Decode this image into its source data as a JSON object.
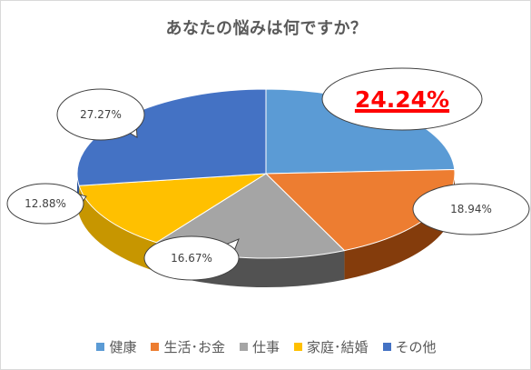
{
  "chart_data": {
    "type": "pie",
    "title": "あなたの悩みは何ですか？",
    "categories": [
      "健康",
      "生活･お金",
      "仕事",
      "家庭･結婚",
      "その他"
    ],
    "values": [
      24.24,
      18.94,
      16.67,
      12.88,
      27.27
    ],
    "labels": [
      "24.24%",
      "18.94%",
      "16.67%",
      "12.88%",
      "27.27%"
    ],
    "highlight_index": 0,
    "colors": [
      "#5b9bd5",
      "#ed7d31",
      "#a5a5a5",
      "#ffc000",
      "#4472c4"
    ],
    "side_colors": [
      "#3a6ea5",
      "#843c0c",
      "#525252",
      "#c79600",
      "#2f5597"
    ],
    "legend_position": "bottom",
    "style": "3d-pie"
  }
}
